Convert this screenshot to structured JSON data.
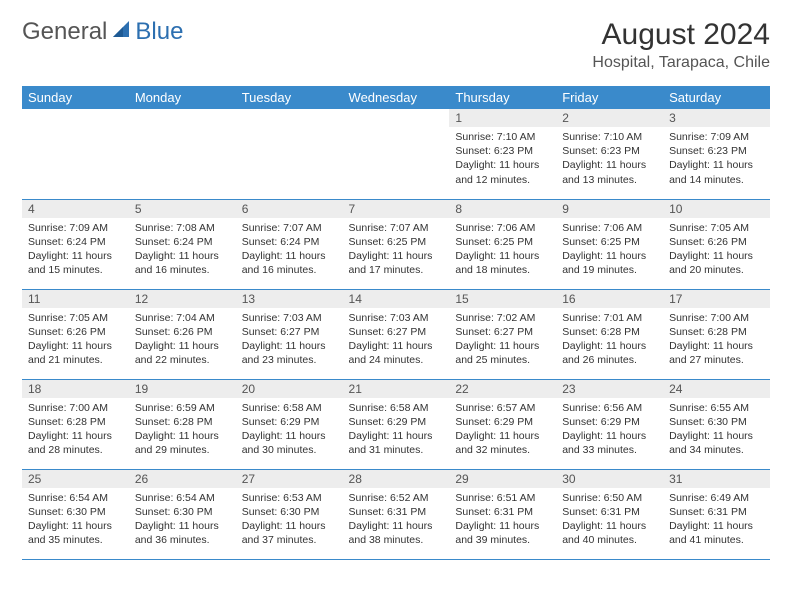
{
  "logo": {
    "part1": "General",
    "part2": "Blue"
  },
  "title": "August 2024",
  "location": "Hospital, Tarapaca, Chile",
  "colors": {
    "header_bg": "#3a8acb",
    "header_text": "#ffffff",
    "daynum_bg": "#ededed",
    "row_border": "#3a8acb",
    "logo_accent": "#2c6fb0",
    "text": "#333333"
  },
  "weekdays": [
    "Sunday",
    "Monday",
    "Tuesday",
    "Wednesday",
    "Thursday",
    "Friday",
    "Saturday"
  ],
  "weeks": [
    [
      {
        "empty": true
      },
      {
        "empty": true
      },
      {
        "empty": true
      },
      {
        "empty": true
      },
      {
        "day": "1",
        "sunrise": "Sunrise: 7:10 AM",
        "sunset": "Sunset: 6:23 PM",
        "daylight": "Daylight: 11 hours and 12 minutes."
      },
      {
        "day": "2",
        "sunrise": "Sunrise: 7:10 AM",
        "sunset": "Sunset: 6:23 PM",
        "daylight": "Daylight: 11 hours and 13 minutes."
      },
      {
        "day": "3",
        "sunrise": "Sunrise: 7:09 AM",
        "sunset": "Sunset: 6:23 PM",
        "daylight": "Daylight: 11 hours and 14 minutes."
      }
    ],
    [
      {
        "day": "4",
        "sunrise": "Sunrise: 7:09 AM",
        "sunset": "Sunset: 6:24 PM",
        "daylight": "Daylight: 11 hours and 15 minutes."
      },
      {
        "day": "5",
        "sunrise": "Sunrise: 7:08 AM",
        "sunset": "Sunset: 6:24 PM",
        "daylight": "Daylight: 11 hours and 16 minutes."
      },
      {
        "day": "6",
        "sunrise": "Sunrise: 7:07 AM",
        "sunset": "Sunset: 6:24 PM",
        "daylight": "Daylight: 11 hours and 16 minutes."
      },
      {
        "day": "7",
        "sunrise": "Sunrise: 7:07 AM",
        "sunset": "Sunset: 6:25 PM",
        "daylight": "Daylight: 11 hours and 17 minutes."
      },
      {
        "day": "8",
        "sunrise": "Sunrise: 7:06 AM",
        "sunset": "Sunset: 6:25 PM",
        "daylight": "Daylight: 11 hours and 18 minutes."
      },
      {
        "day": "9",
        "sunrise": "Sunrise: 7:06 AM",
        "sunset": "Sunset: 6:25 PM",
        "daylight": "Daylight: 11 hours and 19 minutes."
      },
      {
        "day": "10",
        "sunrise": "Sunrise: 7:05 AM",
        "sunset": "Sunset: 6:26 PM",
        "daylight": "Daylight: 11 hours and 20 minutes."
      }
    ],
    [
      {
        "day": "11",
        "sunrise": "Sunrise: 7:05 AM",
        "sunset": "Sunset: 6:26 PM",
        "daylight": "Daylight: 11 hours and 21 minutes."
      },
      {
        "day": "12",
        "sunrise": "Sunrise: 7:04 AM",
        "sunset": "Sunset: 6:26 PM",
        "daylight": "Daylight: 11 hours and 22 minutes."
      },
      {
        "day": "13",
        "sunrise": "Sunrise: 7:03 AM",
        "sunset": "Sunset: 6:27 PM",
        "daylight": "Daylight: 11 hours and 23 minutes."
      },
      {
        "day": "14",
        "sunrise": "Sunrise: 7:03 AM",
        "sunset": "Sunset: 6:27 PM",
        "daylight": "Daylight: 11 hours and 24 minutes."
      },
      {
        "day": "15",
        "sunrise": "Sunrise: 7:02 AM",
        "sunset": "Sunset: 6:27 PM",
        "daylight": "Daylight: 11 hours and 25 minutes."
      },
      {
        "day": "16",
        "sunrise": "Sunrise: 7:01 AM",
        "sunset": "Sunset: 6:28 PM",
        "daylight": "Daylight: 11 hours and 26 minutes."
      },
      {
        "day": "17",
        "sunrise": "Sunrise: 7:00 AM",
        "sunset": "Sunset: 6:28 PM",
        "daylight": "Daylight: 11 hours and 27 minutes."
      }
    ],
    [
      {
        "day": "18",
        "sunrise": "Sunrise: 7:00 AM",
        "sunset": "Sunset: 6:28 PM",
        "daylight": "Daylight: 11 hours and 28 minutes."
      },
      {
        "day": "19",
        "sunrise": "Sunrise: 6:59 AM",
        "sunset": "Sunset: 6:28 PM",
        "daylight": "Daylight: 11 hours and 29 minutes."
      },
      {
        "day": "20",
        "sunrise": "Sunrise: 6:58 AM",
        "sunset": "Sunset: 6:29 PM",
        "daylight": "Daylight: 11 hours and 30 minutes."
      },
      {
        "day": "21",
        "sunrise": "Sunrise: 6:58 AM",
        "sunset": "Sunset: 6:29 PM",
        "daylight": "Daylight: 11 hours and 31 minutes."
      },
      {
        "day": "22",
        "sunrise": "Sunrise: 6:57 AM",
        "sunset": "Sunset: 6:29 PM",
        "daylight": "Daylight: 11 hours and 32 minutes."
      },
      {
        "day": "23",
        "sunrise": "Sunrise: 6:56 AM",
        "sunset": "Sunset: 6:29 PM",
        "daylight": "Daylight: 11 hours and 33 minutes."
      },
      {
        "day": "24",
        "sunrise": "Sunrise: 6:55 AM",
        "sunset": "Sunset: 6:30 PM",
        "daylight": "Daylight: 11 hours and 34 minutes."
      }
    ],
    [
      {
        "day": "25",
        "sunrise": "Sunrise: 6:54 AM",
        "sunset": "Sunset: 6:30 PM",
        "daylight": "Daylight: 11 hours and 35 minutes."
      },
      {
        "day": "26",
        "sunrise": "Sunrise: 6:54 AM",
        "sunset": "Sunset: 6:30 PM",
        "daylight": "Daylight: 11 hours and 36 minutes."
      },
      {
        "day": "27",
        "sunrise": "Sunrise: 6:53 AM",
        "sunset": "Sunset: 6:30 PM",
        "daylight": "Daylight: 11 hours and 37 minutes."
      },
      {
        "day": "28",
        "sunrise": "Sunrise: 6:52 AM",
        "sunset": "Sunset: 6:31 PM",
        "daylight": "Daylight: 11 hours and 38 minutes."
      },
      {
        "day": "29",
        "sunrise": "Sunrise: 6:51 AM",
        "sunset": "Sunset: 6:31 PM",
        "daylight": "Daylight: 11 hours and 39 minutes."
      },
      {
        "day": "30",
        "sunrise": "Sunrise: 6:50 AM",
        "sunset": "Sunset: 6:31 PM",
        "daylight": "Daylight: 11 hours and 40 minutes."
      },
      {
        "day": "31",
        "sunrise": "Sunrise: 6:49 AM",
        "sunset": "Sunset: 6:31 PM",
        "daylight": "Daylight: 11 hours and 41 minutes."
      }
    ]
  ]
}
